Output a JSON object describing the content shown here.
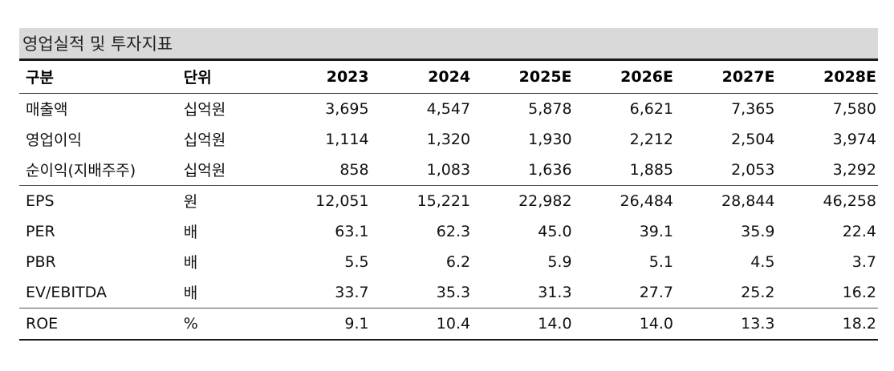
{
  "title": "영업실적 및 투자지표",
  "columns": {
    "name": "구분",
    "unit": "단위",
    "years": [
      "2023",
      "2024",
      "2025E",
      "2026E",
      "2027E",
      "2028E"
    ]
  },
  "rows": [
    {
      "name": "매출액",
      "unit": "십억원",
      "values": [
        "3,695",
        "4,547",
        "5,878",
        "6,621",
        "7,365",
        "7,580"
      ]
    },
    {
      "name": "영업이익",
      "unit": "십억원",
      "values": [
        "1,114",
        "1,320",
        "1,930",
        "2,212",
        "2,504",
        "3,974"
      ]
    },
    {
      "name": "순이익(지배주주)",
      "unit": "십억원",
      "values": [
        "858",
        "1,083",
        "1,636",
        "1,885",
        "2,053",
        "3,292"
      ]
    },
    {
      "name": "EPS",
      "unit": "원",
      "values": [
        "12,051",
        "15,221",
        "22,982",
        "26,484",
        "28,844",
        "46,258"
      ]
    },
    {
      "name": "PER",
      "unit": "배",
      "values": [
        "63.1",
        "62.3",
        "45.0",
        "39.1",
        "35.9",
        "22.4"
      ]
    },
    {
      "name": "PBR",
      "unit": "배",
      "values": [
        "5.5",
        "6.2",
        "5.9",
        "5.1",
        "4.5",
        "3.7"
      ]
    },
    {
      "name": "EV/EBITDA",
      "unit": "배",
      "values": [
        "33.7",
        "35.3",
        "31.3",
        "27.7",
        "25.2",
        "16.2"
      ]
    },
    {
      "name": "ROE",
      "unit": "%",
      "values": [
        "9.1",
        "10.4",
        "14.0",
        "14.0",
        "13.3",
        "18.2"
      ]
    }
  ]
}
